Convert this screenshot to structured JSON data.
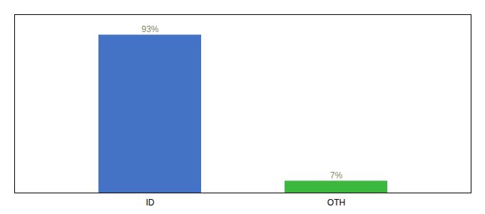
{
  "chart_data": {
    "type": "bar",
    "categories": [
      "ID",
      "OTH"
    ],
    "values": [
      93,
      7
    ],
    "value_labels": [
      "93%",
      "7%"
    ],
    "data_labels": true,
    "colors": [
      "#4472c4",
      "#3cb840"
    ],
    "ylim": [
      0,
      105
    ],
    "tick_labels": "x"
  }
}
